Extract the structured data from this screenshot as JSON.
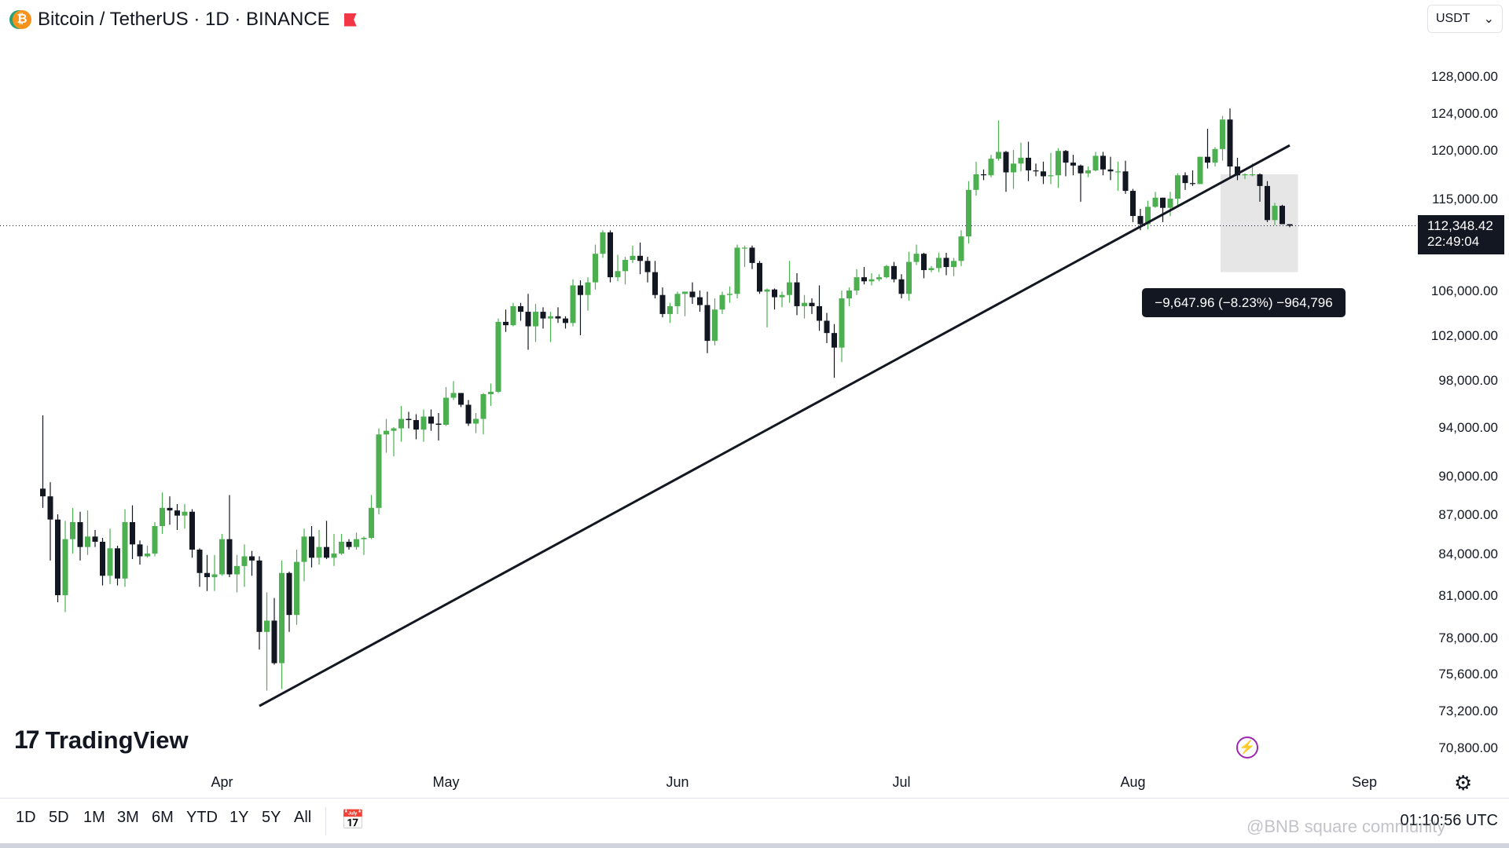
{
  "header": {
    "logo_glyph": "₿",
    "title": "Bitcoin / TetherUS · 1D · BINANCE",
    "market_flag_icon": "red-flag-icon"
  },
  "currency_select": {
    "value": "USDT",
    "arrow": "⌄"
  },
  "price_label": {
    "price": "112,348.42",
    "countdown": "22:49:04"
  },
  "measure_label": "−9,647.96 (−8.23%) −964,796",
  "brand": {
    "name": "TradingView",
    "mark": "17"
  },
  "timeframes": [
    "1D",
    "5D",
    "1M",
    "3M",
    "6M",
    "YTD",
    "1Y",
    "5Y",
    "All"
  ],
  "clock": "01:10:56 UTC",
  "watermark": "@BNB square community",
  "icons": {
    "calendar": "calendar-range-icon",
    "gear": "settings-icon",
    "bolt": "lightning-icon"
  },
  "colors": {
    "up": "#4caf50",
    "down": "#131722",
    "trendline": "#131722",
    "measure_box": "#e6e6e6"
  },
  "chart_data": {
    "type": "candlestick",
    "symbol": "Bitcoin / TetherUS",
    "interval": "1D",
    "exchange": "BINANCE",
    "x_tick_labels": [
      "Apr",
      "May",
      "Jun",
      "Jul",
      "Aug",
      "Sep"
    ],
    "y_tick_labels": [
      "128,000.00",
      "124,000.00",
      "120,000.00",
      "115,000.00",
      "106,000.00",
      "102,000.00",
      "98,000.00",
      "94,000.00",
      "90,000.00",
      "87,000.00",
      "84,000.00",
      "81,000.00",
      "78,000.00",
      "75,600.00",
      "73,200.00",
      "70,800.00"
    ],
    "y_ticks": [
      128000,
      124000,
      120000,
      115000,
      106000,
      102000,
      98000,
      94000,
      90000,
      87000,
      84000,
      81000,
      78000,
      75600,
      73200,
      70800
    ],
    "current_price": 112348.42,
    "trendline": {
      "from": [
        "2025-04-06",
        73500
      ],
      "to": [
        "2025-08-22",
        120500
      ]
    },
    "measure": {
      "change": -9647.96,
      "percent": -8.23,
      "from": [
        "2025-08-14",
        117500
      ],
      "to": [
        "2025-08-17",
        107800
      ]
    },
    "ohlc": [
      [
        "2025-03-08",
        89000,
        95000,
        87500,
        88400
      ],
      [
        "2025-03-09",
        88400,
        89500,
        83500,
        86600
      ],
      [
        "2025-03-10",
        86600,
        87000,
        80500,
        81000
      ],
      [
        "2025-03-11",
        81000,
        86500,
        79800,
        85100
      ],
      [
        "2025-03-12",
        85100,
        87500,
        84000,
        86400
      ],
      [
        "2025-03-13",
        86400,
        87200,
        83500,
        84500
      ],
      [
        "2025-03-14",
        84500,
        87300,
        83900,
        85300
      ],
      [
        "2025-03-15",
        85300,
        85800,
        84500,
        84900
      ],
      [
        "2025-03-16",
        84900,
        85200,
        81700,
        82400
      ],
      [
        "2025-03-17",
        82400,
        85900,
        81800,
        84400
      ],
      [
        "2025-03-18",
        84400,
        84600,
        81700,
        82200
      ],
      [
        "2025-03-19",
        82200,
        87400,
        81600,
        86400
      ],
      [
        "2025-03-20",
        86400,
        87700,
        83600,
        84700
      ],
      [
        "2025-03-21",
        84700,
        85000,
        83200,
        83800
      ],
      [
        "2025-03-22",
        83800,
        84600,
        83700,
        84000
      ],
      [
        "2025-03-23",
        84000,
        86400,
        83800,
        86100
      ],
      [
        "2025-03-24",
        86100,
        88700,
        85500,
        87500
      ],
      [
        "2025-03-25",
        87500,
        88400,
        86200,
        87300
      ],
      [
        "2025-03-26",
        87300,
        87800,
        85800,
        86900
      ],
      [
        "2025-03-27",
        86900,
        87800,
        85900,
        87200
      ],
      [
        "2025-03-28",
        87200,
        87400,
        83700,
        84300
      ],
      [
        "2025-03-29",
        84300,
        84400,
        81600,
        82600
      ],
      [
        "2025-03-30",
        82600,
        83900,
        81300,
        82300
      ],
      [
        "2025-03-31",
        82300,
        83900,
        81300,
        82500
      ],
      [
        "2025-04-01",
        82500,
        85500,
        82400,
        85100
      ],
      [
        "2025-04-02",
        85100,
        88500,
        82300,
        82500
      ],
      [
        "2025-04-03",
        82500,
        83900,
        81200,
        83100
      ],
      [
        "2025-04-04",
        83100,
        84700,
        81600,
        83800
      ],
      [
        "2025-04-05",
        83800,
        84200,
        82400,
        83500
      ],
      [
        "2025-04-06",
        83500,
        83800,
        77200,
        78400
      ],
      [
        "2025-04-07",
        78400,
        81200,
        74500,
        79200
      ],
      [
        "2025-04-08",
        79200,
        80800,
        76200,
        76300
      ],
      [
        "2025-04-09",
        76300,
        83500,
        74600,
        82600
      ],
      [
        "2025-04-10",
        82600,
        82700,
        78400,
        79600
      ],
      [
        "2025-04-11",
        79600,
        84300,
        78900,
        83400
      ],
      [
        "2025-04-12",
        83400,
        85900,
        82000,
        85300
      ],
      [
        "2025-04-13",
        85300,
        86100,
        83000,
        83700
      ],
      [
        "2025-04-14",
        83700,
        85800,
        83200,
        84500
      ],
      [
        "2025-04-15",
        84500,
        86500,
        83600,
        83700
      ],
      [
        "2025-04-16",
        83700,
        85500,
        83100,
        84000
      ],
      [
        "2025-04-17",
        84000,
        85500,
        83900,
        84900
      ],
      [
        "2025-04-18",
        84900,
        85100,
        84300,
        84500
      ],
      [
        "2025-04-19",
        84500,
        85600,
        84300,
        85100
      ],
      [
        "2025-04-20",
        85100,
        85300,
        83900,
        85200
      ],
      [
        "2025-04-21",
        85200,
        88500,
        85100,
        87500
      ],
      [
        "2025-04-22",
        87500,
        93900,
        87000,
        93400
      ],
      [
        "2025-04-23",
        93400,
        94700,
        91900,
        93700
      ],
      [
        "2025-04-24",
        93700,
        94000,
        91600,
        93900
      ],
      [
        "2025-04-25",
        93900,
        95800,
        92800,
        94700
      ],
      [
        "2025-04-26",
        94700,
        95300,
        93900,
        94600
      ],
      [
        "2025-04-27",
        94600,
        95100,
        93000,
        93800
      ],
      [
        "2025-04-28",
        93800,
        95500,
        92800,
        94900
      ],
      [
        "2025-04-29",
        94900,
        95500,
        93700,
        94300
      ],
      [
        "2025-04-30",
        94300,
        95200,
        92900,
        94200
      ],
      [
        "2025-05-01",
        94200,
        97400,
        94100,
        96500
      ],
      [
        "2025-05-02",
        96500,
        97900,
        96300,
        96900
      ],
      [
        "2025-05-03",
        96900,
        96900,
        95700,
        95900
      ],
      [
        "2025-05-04",
        95900,
        96300,
        94100,
        94300
      ],
      [
        "2025-05-05",
        94300,
        95200,
        93500,
        94700
      ],
      [
        "2025-05-06",
        94700,
        96900,
        93400,
        96800
      ],
      [
        "2025-05-07",
        96800,
        97700,
        95800,
        97000
      ],
      [
        "2025-05-08",
        97000,
        103500,
        96900,
        103200
      ],
      [
        "2025-05-09",
        103200,
        104300,
        102300,
        102900
      ],
      [
        "2025-05-10",
        102900,
        104900,
        102800,
        104600
      ],
      [
        "2025-05-11",
        104600,
        104900,
        103300,
        104100
      ],
      [
        "2025-05-12",
        104100,
        105700,
        100700,
        102800
      ],
      [
        "2025-05-13",
        102800,
        104800,
        101400,
        104100
      ],
      [
        "2025-05-14",
        104100,
        104500,
        102600,
        103500
      ],
      [
        "2025-05-15",
        103500,
        104100,
        101400,
        103700
      ],
      [
        "2025-05-16",
        103700,
        104500,
        103100,
        103500
      ],
      [
        "2025-05-17",
        103500,
        103700,
        102600,
        103100
      ],
      [
        "2025-05-18",
        103100,
        107100,
        102800,
        106500
      ],
      [
        "2025-05-19",
        106500,
        107000,
        102000,
        105600
      ],
      [
        "2025-05-20",
        105600,
        107300,
        104200,
        106800
      ],
      [
        "2025-05-21",
        106800,
        110500,
        106100,
        109600
      ],
      [
        "2025-05-22",
        109600,
        111900,
        109200,
        111700
      ],
      [
        "2025-05-23",
        111700,
        111900,
        106800,
        107300
      ],
      [
        "2025-05-24",
        107300,
        109500,
        106900,
        107900
      ],
      [
        "2025-05-25",
        107900,
        109300,
        106600,
        109000
      ],
      [
        "2025-05-26",
        109000,
        110400,
        108700,
        109400
      ],
      [
        "2025-05-27",
        109400,
        110700,
        107600,
        108900
      ],
      [
        "2025-05-28",
        108900,
        109300,
        106800,
        107800
      ],
      [
        "2025-05-29",
        107800,
        108900,
        105300,
        105600
      ],
      [
        "2025-05-30",
        105600,
        106300,
        103600,
        103900
      ],
      [
        "2025-05-31",
        103900,
        104900,
        103100,
        104600
      ],
      [
        "2025-06-01",
        104600,
        105900,
        103900,
        105700
      ],
      [
        "2025-06-02",
        105700,
        105900,
        103700,
        105900
      ],
      [
        "2025-06-03",
        105900,
        106800,
        104800,
        105400
      ],
      [
        "2025-06-04",
        105400,
        106000,
        104100,
        104700
      ],
      [
        "2025-06-05",
        104700,
        105900,
        100400,
        101500
      ],
      [
        "2025-06-06",
        101500,
        105300,
        101100,
        104300
      ],
      [
        "2025-06-07",
        104300,
        105900,
        103900,
        105600
      ],
      [
        "2025-06-08",
        105600,
        106400,
        104900,
        105700
      ],
      [
        "2025-06-09",
        105700,
        110500,
        105300,
        110200
      ],
      [
        "2025-06-10",
        110200,
        110400,
        108300,
        110200
      ],
      [
        "2025-06-11",
        110200,
        110400,
        108100,
        108700
      ],
      [
        "2025-06-12",
        108700,
        108900,
        105700,
        105900
      ],
      [
        "2025-06-13",
        105900,
        106200,
        102700,
        106100
      ],
      [
        "2025-06-14",
        106100,
        106200,
        104300,
        105400
      ],
      [
        "2025-06-15",
        105400,
        105900,
        104500,
        105600
      ],
      [
        "2025-06-16",
        105600,
        108900,
        104900,
        106800
      ],
      [
        "2025-06-17",
        106800,
        107700,
        103800,
        104600
      ],
      [
        "2025-06-18",
        104600,
        105600,
        103500,
        104900
      ],
      [
        "2025-06-19",
        104900,
        105300,
        103900,
        104600
      ],
      [
        "2025-06-20",
        104600,
        106500,
        102400,
        103300
      ],
      [
        "2025-06-21",
        103300,
        104000,
        101300,
        102200
      ],
      [
        "2025-06-22",
        102200,
        103000,
        98200,
        100900
      ],
      [
        "2025-06-23",
        100900,
        106000,
        99600,
        105300
      ],
      [
        "2025-06-24",
        105300,
        106300,
        104600,
        106000
      ],
      [
        "2025-06-25",
        106000,
        108100,
        105600,
        107300
      ],
      [
        "2025-06-26",
        107300,
        108300,
        106600,
        106900
      ],
      [
        "2025-06-27",
        106900,
        107700,
        106500,
        107100
      ],
      [
        "2025-06-28",
        107100,
        107600,
        106900,
        107300
      ],
      [
        "2025-06-29",
        107300,
        108500,
        107200,
        108400
      ],
      [
        "2025-06-30",
        108400,
        108800,
        106800,
        107100
      ],
      [
        "2025-07-01",
        107100,
        107600,
        105300,
        105700
      ],
      [
        "2025-07-02",
        105700,
        109800,
        105100,
        108800
      ],
      [
        "2025-07-03",
        108800,
        110500,
        108500,
        109600
      ],
      [
        "2025-07-04",
        109600,
        109700,
        107200,
        108000
      ],
      [
        "2025-07-05",
        108000,
        108400,
        107800,
        108200
      ],
      [
        "2025-07-06",
        108200,
        109700,
        107800,
        109200
      ],
      [
        "2025-07-07",
        109200,
        109700,
        107500,
        108300
      ],
      [
        "2025-07-08",
        108300,
        109200,
        107400,
        108900
      ],
      [
        "2025-07-09",
        108900,
        111900,
        108400,
        111300
      ],
      [
        "2025-07-10",
        111300,
        116800,
        110600,
        115900
      ],
      [
        "2025-07-11",
        115900,
        118800,
        115300,
        117500
      ],
      [
        "2025-07-12",
        117500,
        118000,
        116900,
        117400
      ],
      [
        "2025-07-13",
        117400,
        119500,
        117200,
        119100
      ],
      [
        "2025-07-14",
        119100,
        123200,
        118900,
        119800
      ],
      [
        "2025-07-15",
        119800,
        119900,
        115700,
        117700
      ],
      [
        "2025-07-16",
        117700,
        120000,
        116000,
        118600
      ],
      [
        "2025-07-17",
        118600,
        120800,
        117800,
        119200
      ],
      [
        "2025-07-18",
        119200,
        120900,
        116800,
        117900
      ],
      [
        "2025-07-19",
        117900,
        118600,
        117300,
        117800
      ],
      [
        "2025-07-20",
        117800,
        118800,
        116500,
        117300
      ],
      [
        "2025-07-21",
        117300,
        119700,
        116500,
        117400
      ],
      [
        "2025-07-22",
        117400,
        120200,
        116100,
        119900
      ],
      [
        "2025-07-23",
        119900,
        120000,
        117300,
        118700
      ],
      [
        "2025-07-24",
        118700,
        119500,
        117400,
        118400
      ],
      [
        "2025-07-25",
        118400,
        118500,
        114700,
        117600
      ],
      [
        "2025-07-26",
        117600,
        118300,
        117200,
        117900
      ],
      [
        "2025-07-27",
        117900,
        119800,
        117800,
        119400
      ],
      [
        "2025-07-28",
        119400,
        119800,
        117400,
        118000
      ],
      [
        "2025-07-29",
        118000,
        119300,
        116900,
        117800
      ],
      [
        "2025-07-30",
        117800,
        118800,
        115800,
        117800
      ],
      [
        "2025-07-31",
        117800,
        118900,
        115500,
        115800
      ],
      [
        "2025-08-01",
        115800,
        116000,
        112700,
        113300
      ],
      [
        "2025-08-02",
        113300,
        114000,
        111900,
        112500
      ],
      [
        "2025-08-03",
        112500,
        114800,
        112000,
        114200
      ],
      [
        "2025-08-04",
        114200,
        115700,
        114100,
        115100
      ],
      [
        "2025-08-05",
        115100,
        115100,
        112700,
        114100
      ],
      [
        "2025-08-06",
        114100,
        115700,
        113300,
        115000
      ],
      [
        "2025-08-07",
        115000,
        117600,
        114200,
        117400
      ],
      [
        "2025-08-08",
        117400,
        117700,
        115900,
        116600
      ],
      [
        "2025-08-09",
        116600,
        117900,
        116300,
        116500
      ],
      [
        "2025-08-10",
        116500,
        119300,
        116500,
        119300
      ],
      [
        "2025-08-11",
        119300,
        122300,
        118100,
        118700
      ],
      [
        "2025-08-12",
        118700,
        120300,
        118300,
        120100
      ],
      [
        "2025-08-13",
        120100,
        123700,
        118900,
        123300
      ],
      [
        "2025-08-14",
        123300,
        124500,
        117200,
        118300
      ],
      [
        "2025-08-15",
        118300,
        119200,
        116900,
        117400
      ],
      [
        "2025-08-16",
        117400,
        117600,
        117000,
        117500
      ],
      [
        "2025-08-17",
        117500,
        118600,
        117300,
        117500
      ],
      [
        "2025-08-18",
        117500,
        117600,
        114700,
        116300
      ],
      [
        "2025-08-19",
        116300,
        116800,
        112700,
        112900
      ],
      [
        "2025-08-20",
        112900,
        114600,
        112400,
        114300
      ],
      [
        "2025-08-21",
        114300,
        114400,
        112500,
        112500
      ],
      [
        "2025-08-22",
        112500,
        112500,
        112200,
        112348.42
      ]
    ]
  }
}
